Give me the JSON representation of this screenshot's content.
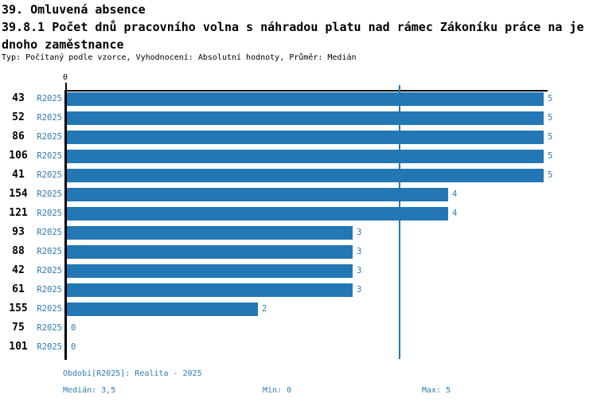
{
  "header": {
    "section_title": "39. Omluvená absence",
    "indicator_title_line1": "39.8.1 Počet dnů pracovního volna s náhradou platu nad rámec Zákoníku práce na je",
    "indicator_title_line2": "dnoho zaměstnance",
    "meta": "Typ: Počítaný podle vzorce, Vyhodnocení: Absolutní hodnoty, Průměr: Medián"
  },
  "chart_data": {
    "type": "bar",
    "orientation": "horizontal",
    "title": "39.8.1 Počet dnů pracovního volna s náhradou platu nad rámec Zákoníku práce na jednoho zaměstnance",
    "categories": [
      "43",
      "52",
      "86",
      "106",
      "41",
      "154",
      "121",
      "93",
      "88",
      "42",
      "61",
      "155",
      "75",
      "101"
    ],
    "series": [
      {
        "name": "R2025",
        "values": [
          5,
          5,
          5,
          5,
          5,
          4,
          4,
          3,
          3,
          3,
          3,
          2,
          0,
          0
        ]
      }
    ],
    "period_label": "R2025",
    "axis_origin_label": "0",
    "xlim": [
      0,
      5
    ],
    "median_reference_line": 3.5,
    "grid": false,
    "bar_color": "#2277b4",
    "label_color": "#2b7cb5"
  },
  "footer": {
    "period_legend": "Období[R2025]: Realita - 2025",
    "median": "Medián: 3,5",
    "min": "Min: 0",
    "max": "Max: 5"
  },
  "colors": {
    "bar": "#2277b4",
    "blue_text": "#2b7cb5",
    "axis": "#000000"
  }
}
